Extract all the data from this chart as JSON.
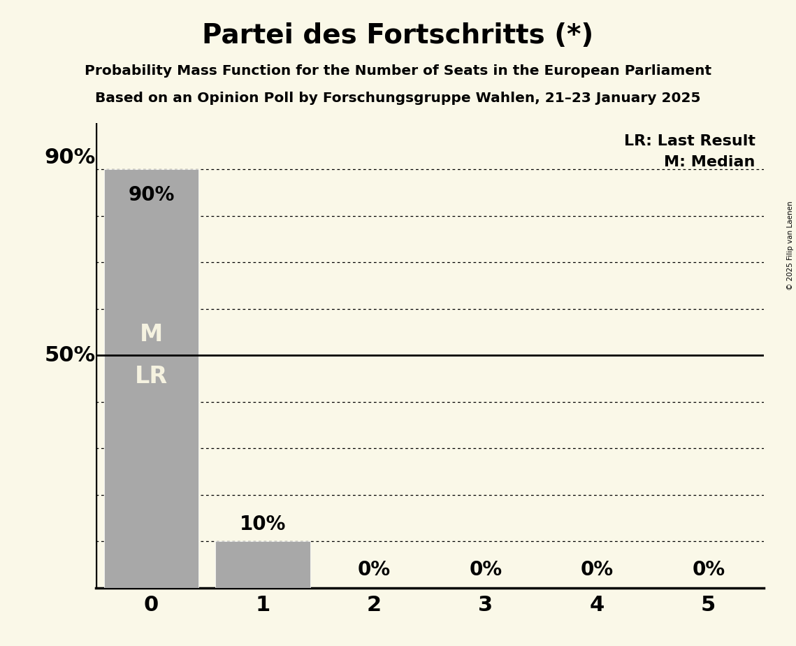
{
  "title": "Partei des Fortschritts (*)",
  "subtitle1": "Probability Mass Function for the Number of Seats in the European Parliament",
  "subtitle2": "Based on an Opinion Poll by Forschungsgruppe Wahlen, 21–23 January 2025",
  "copyright": "© 2025 Filip van Laenen",
  "categories": [
    0,
    1,
    2,
    3,
    4,
    5
  ],
  "values": [
    0.9,
    0.1,
    0.0,
    0.0,
    0.0,
    0.0
  ],
  "bar_color": "#a8a8a8",
  "background_color": "#faf8e8",
  "bar_labels": [
    "90%",
    "10%",
    "0%",
    "0%",
    "0%",
    "0%"
  ],
  "ylim": [
    0,
    1.0
  ],
  "dotted_lines": [
    0.1,
    0.2,
    0.3,
    0.4,
    0.6,
    0.7,
    0.8,
    0.9
  ],
  "solid_line": 0.5,
  "legend_lr": "LR: Last Result",
  "legend_m": "M: Median",
  "ylabel_50": "50%",
  "ylabel_90": "90%",
  "median_seat": 0,
  "lr_seat": 0
}
